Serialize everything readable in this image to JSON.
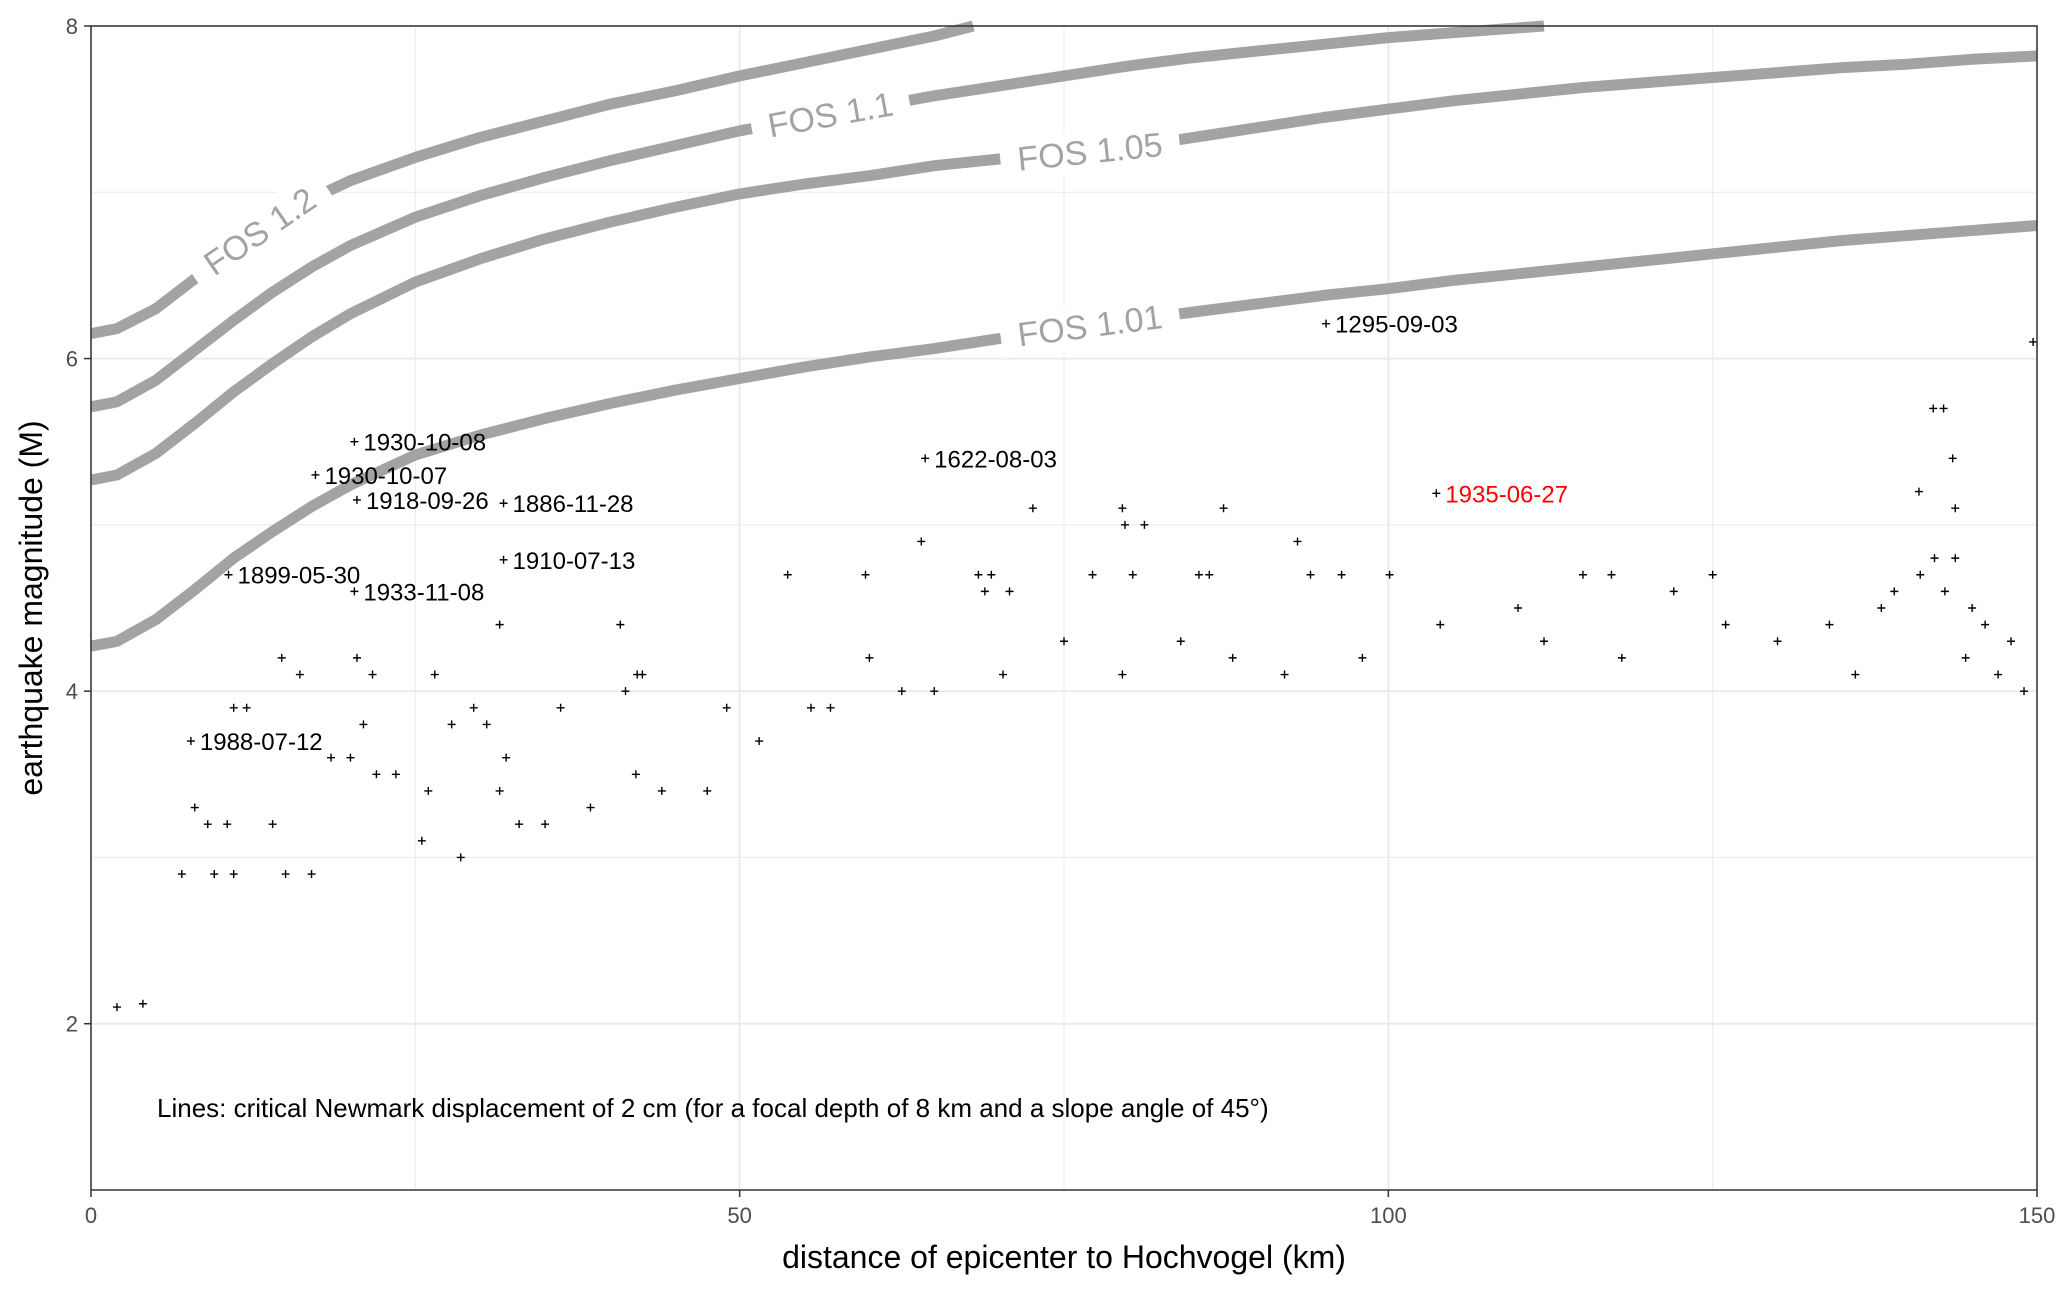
{
  "chart_data": {
    "type": "scatter",
    "xlabel": "distance of epicenter to Hochvogel (km)",
    "ylabel": "earthquake magnitude (M)",
    "xlim": [
      0,
      150
    ],
    "ylim": [
      1,
      8
    ],
    "xticks": [
      0,
      50,
      100,
      150
    ],
    "yticks": [
      2,
      4,
      6,
      8
    ],
    "xtick_labels": [
      "0",
      "50",
      "100",
      "150"
    ],
    "ytick_labels": [
      "2",
      "4",
      "6",
      "8"
    ],
    "grid": true,
    "note": "Lines: critical Newmark displacement of 2 cm (for a focal depth of 8 km and a slope angle of 45°)",
    "colors": {
      "points": "#000000",
      "fos_lines": "#a3a3a3",
      "highlight": "#ff0000",
      "grid": "#ebebeb"
    },
    "fos_curves": [
      {
        "label": "FOS 1.2",
        "label_x": 13,
        "points": [
          [
            0,
            6.15
          ],
          [
            2,
            6.18
          ],
          [
            5,
            6.3
          ],
          [
            8,
            6.48
          ],
          [
            11,
            6.66
          ],
          [
            14,
            6.82
          ],
          [
            17,
            6.96
          ],
          [
            20,
            7.07
          ],
          [
            25,
            7.21
          ],
          [
            30,
            7.33
          ],
          [
            35,
            7.43
          ],
          [
            40,
            7.53
          ],
          [
            45,
            7.61
          ],
          [
            50,
            7.7
          ],
          [
            55,
            7.78
          ],
          [
            60,
            7.86
          ],
          [
            65,
            7.94
          ],
          [
            68,
            8.0
          ]
        ]
      },
      {
        "label": "FOS 1.1",
        "label_x": 57,
        "points": [
          [
            0,
            5.71
          ],
          [
            2,
            5.74
          ],
          [
            5,
            5.87
          ],
          [
            8,
            6.05
          ],
          [
            11,
            6.23
          ],
          [
            14,
            6.4
          ],
          [
            17,
            6.55
          ],
          [
            20,
            6.68
          ],
          [
            25,
            6.85
          ],
          [
            30,
            6.98
          ],
          [
            35,
            7.09
          ],
          [
            40,
            7.19
          ],
          [
            45,
            7.28
          ],
          [
            50,
            7.37
          ],
          [
            55,
            7.44
          ],
          [
            60,
            7.51
          ],
          [
            65,
            7.58
          ],
          [
            70,
            7.64
          ],
          [
            75,
            7.7
          ],
          [
            80,
            7.76
          ],
          [
            85,
            7.81
          ],
          [
            90,
            7.85
          ],
          [
            95,
            7.89
          ],
          [
            100,
            7.93
          ],
          [
            105,
            7.96
          ],
          [
            112,
            8.0
          ]
        ]
      },
      {
        "label": "FOS 1.05",
        "label_x": 77,
        "points": [
          [
            0,
            5.27
          ],
          [
            2,
            5.3
          ],
          [
            5,
            5.43
          ],
          [
            8,
            5.61
          ],
          [
            11,
            5.8
          ],
          [
            14,
            5.97
          ],
          [
            17,
            6.13
          ],
          [
            20,
            6.27
          ],
          [
            25,
            6.46
          ],
          [
            30,
            6.6
          ],
          [
            35,
            6.72
          ],
          [
            40,
            6.82
          ],
          [
            45,
            6.91
          ],
          [
            50,
            6.99
          ],
          [
            55,
            7.05
          ],
          [
            60,
            7.1
          ],
          [
            65,
            7.16
          ],
          [
            70,
            7.2
          ],
          [
            75,
            7.23
          ],
          [
            80,
            7.27
          ],
          [
            85,
            7.33
          ],
          [
            90,
            7.39
          ],
          [
            95,
            7.45
          ],
          [
            100,
            7.5
          ],
          [
            105,
            7.55
          ],
          [
            110,
            7.59
          ],
          [
            115,
            7.63
          ],
          [
            120,
            7.66
          ],
          [
            125,
            7.69
          ],
          [
            130,
            7.72
          ],
          [
            135,
            7.75
          ],
          [
            140,
            7.77
          ],
          [
            145,
            7.8
          ],
          [
            150,
            7.82
          ]
        ]
      },
      {
        "label": "FOS 1.01",
        "label_x": 77,
        "points": [
          [
            0,
            4.27
          ],
          [
            2,
            4.3
          ],
          [
            5,
            4.43
          ],
          [
            8,
            4.61
          ],
          [
            11,
            4.8
          ],
          [
            14,
            4.96
          ],
          [
            17,
            5.11
          ],
          [
            20,
            5.24
          ],
          [
            25,
            5.42
          ],
          [
            30,
            5.54
          ],
          [
            35,
            5.64
          ],
          [
            40,
            5.73
          ],
          [
            45,
            5.81
          ],
          [
            50,
            5.88
          ],
          [
            55,
            5.95
          ],
          [
            60,
            6.01
          ],
          [
            65,
            6.06
          ],
          [
            70,
            6.12
          ],
          [
            75,
            6.18
          ],
          [
            80,
            6.23
          ],
          [
            85,
            6.28
          ],
          [
            90,
            6.33
          ],
          [
            95,
            6.38
          ],
          [
            100,
            6.42
          ],
          [
            105,
            6.47
          ],
          [
            110,
            6.51
          ],
          [
            115,
            6.55
          ],
          [
            120,
            6.59
          ],
          [
            125,
            6.63
          ],
          [
            130,
            6.67
          ],
          [
            135,
            6.71
          ],
          [
            140,
            6.74
          ],
          [
            145,
            6.77
          ],
          [
            150,
            6.8
          ]
        ]
      }
    ],
    "labeled_events": [
      {
        "label": "1295-09-03",
        "x": 95.2,
        "y": 6.21,
        "color": "#000000"
      },
      {
        "label": "1930-10-08",
        "x": 20.3,
        "y": 5.5,
        "color": "#000000"
      },
      {
        "label": "1622-08-03",
        "x": 64.3,
        "y": 5.4,
        "color": "#000000"
      },
      {
        "label": "1930-10-07",
        "x": 17.3,
        "y": 5.3,
        "color": "#000000"
      },
      {
        "label": "1918-09-26",
        "x": 20.5,
        "y": 5.15,
        "color": "#000000"
      },
      {
        "label": "1886-11-28",
        "x": 31.8,
        "y": 5.13,
        "color": "#000000"
      },
      {
        "label": "1935-06-27",
        "x": 103.7,
        "y": 5.19,
        "color": "#ff0000"
      },
      {
        "label": "1910-07-13",
        "x": 31.8,
        "y": 4.79,
        "color": "#000000"
      },
      {
        "label": "1899-05-30",
        "x": 10.6,
        "y": 4.7,
        "color": "#000000"
      },
      {
        "label": "1933-11-08",
        "x": 20.3,
        "y": 4.6,
        "color": "#000000"
      },
      {
        "label": "1988-07-12",
        "x": 7.7,
        "y": 3.7,
        "color": "#000000"
      }
    ],
    "points": [
      [
        95.2,
        6.21
      ],
      [
        20.3,
        5.5
      ],
      [
        64.3,
        5.4
      ],
      [
        17.3,
        5.3
      ],
      [
        20.5,
        5.15
      ],
      [
        31.8,
        5.13
      ],
      [
        103.7,
        5.19
      ],
      [
        31.8,
        4.79
      ],
      [
        10.6,
        4.7
      ],
      [
        20.3,
        4.6
      ],
      [
        7.7,
        3.7
      ],
      [
        149.7,
        6.1
      ],
      [
        142.0,
        5.7
      ],
      [
        142.8,
        5.7
      ],
      [
        143.5,
        5.4
      ],
      [
        140.9,
        5.2
      ],
      [
        143.7,
        5.1
      ],
      [
        72.6,
        5.1
      ],
      [
        79.5,
        5.1
      ],
      [
        87.3,
        5.1
      ],
      [
        79.7,
        5.0
      ],
      [
        81.2,
        5.0
      ],
      [
        64.0,
        4.9
      ],
      [
        93.0,
        4.9
      ],
      [
        143.7,
        4.8
      ],
      [
        142.1,
        4.8
      ],
      [
        53.7,
        4.7
      ],
      [
        59.7,
        4.7
      ],
      [
        68.4,
        4.7
      ],
      [
        69.4,
        4.7
      ],
      [
        77.2,
        4.7
      ],
      [
        80.3,
        4.7
      ],
      [
        85.4,
        4.7
      ],
      [
        86.2,
        4.7
      ],
      [
        94.0,
        4.7
      ],
      [
        96.4,
        4.7
      ],
      [
        100.1,
        4.7
      ],
      [
        115.0,
        4.7
      ],
      [
        117.2,
        4.7
      ],
      [
        125.0,
        4.7
      ],
      [
        141.0,
        4.7
      ],
      [
        68.9,
        4.6
      ],
      [
        70.8,
        4.6
      ],
      [
        142.9,
        4.6
      ],
      [
        4.0,
        2.12
      ],
      [
        2.0,
        2.1
      ],
      [
        14.7,
        4.2
      ],
      [
        16.1,
        4.1
      ],
      [
        20.5,
        4.2
      ],
      [
        21.7,
        4.1
      ],
      [
        31.5,
        4.4
      ],
      [
        40.8,
        4.4
      ],
      [
        41.2,
        4.0
      ],
      [
        42.1,
        4.1
      ],
      [
        42.5,
        4.1
      ],
      [
        26.5,
        4.1
      ],
      [
        27.8,
        3.8
      ],
      [
        29.5,
        3.9
      ],
      [
        36.2,
        3.9
      ],
      [
        11.0,
        3.9
      ],
      [
        12.0,
        3.9
      ],
      [
        21.0,
        3.8
      ],
      [
        20.0,
        3.6
      ],
      [
        22.0,
        3.5
      ],
      [
        26.0,
        3.4
      ],
      [
        31.5,
        3.4
      ],
      [
        8.0,
        3.3
      ],
      [
        9.0,
        3.2
      ],
      [
        10.5,
        3.2
      ],
      [
        14.0,
        3.2
      ],
      [
        18.5,
        3.6
      ],
      [
        23.5,
        3.5
      ],
      [
        30.5,
        3.8
      ],
      [
        32.0,
        3.6
      ],
      [
        33.0,
        3.2
      ],
      [
        38.5,
        3.3
      ],
      [
        42.0,
        3.5
      ],
      [
        7.0,
        2.9
      ],
      [
        9.5,
        2.9
      ],
      [
        11.0,
        2.9
      ],
      [
        15.0,
        2.9
      ],
      [
        17.0,
        2.9
      ],
      [
        25.5,
        3.1
      ],
      [
        28.5,
        3.0
      ],
      [
        35.0,
        3.2
      ],
      [
        44.0,
        3.4
      ],
      [
        47.5,
        3.4
      ],
      [
        49.0,
        3.9
      ],
      [
        51.5,
        3.7
      ],
      [
        55.5,
        3.9
      ],
      [
        57.0,
        3.9
      ],
      [
        60.0,
        4.2
      ],
      [
        62.5,
        4.0
      ],
      [
        65.0,
        4.0
      ],
      [
        70.3,
        4.1
      ],
      [
        75.0,
        4.3
      ],
      [
        79.5,
        4.1
      ],
      [
        84.0,
        4.3
      ],
      [
        88.0,
        4.2
      ],
      [
        92.0,
        4.1
      ],
      [
        98.0,
        4.2
      ],
      [
        104.0,
        4.4
      ],
      [
        110.0,
        4.5
      ],
      [
        112.0,
        4.3
      ],
      [
        118.0,
        4.2
      ],
      [
        122.0,
        4.6
      ],
      [
        126.0,
        4.4
      ],
      [
        130.0,
        4.3
      ],
      [
        134.0,
        4.4
      ],
      [
        138.0,
        4.5
      ],
      [
        144.5,
        4.2
      ],
      [
        147.0,
        4.1
      ],
      [
        149.0,
        4.0
      ],
      [
        146.0,
        4.4
      ],
      [
        145.0,
        4.5
      ],
      [
        148.0,
        4.3
      ],
      [
        139.0,
        4.6
      ],
      [
        136.0,
        4.1
      ]
    ]
  }
}
